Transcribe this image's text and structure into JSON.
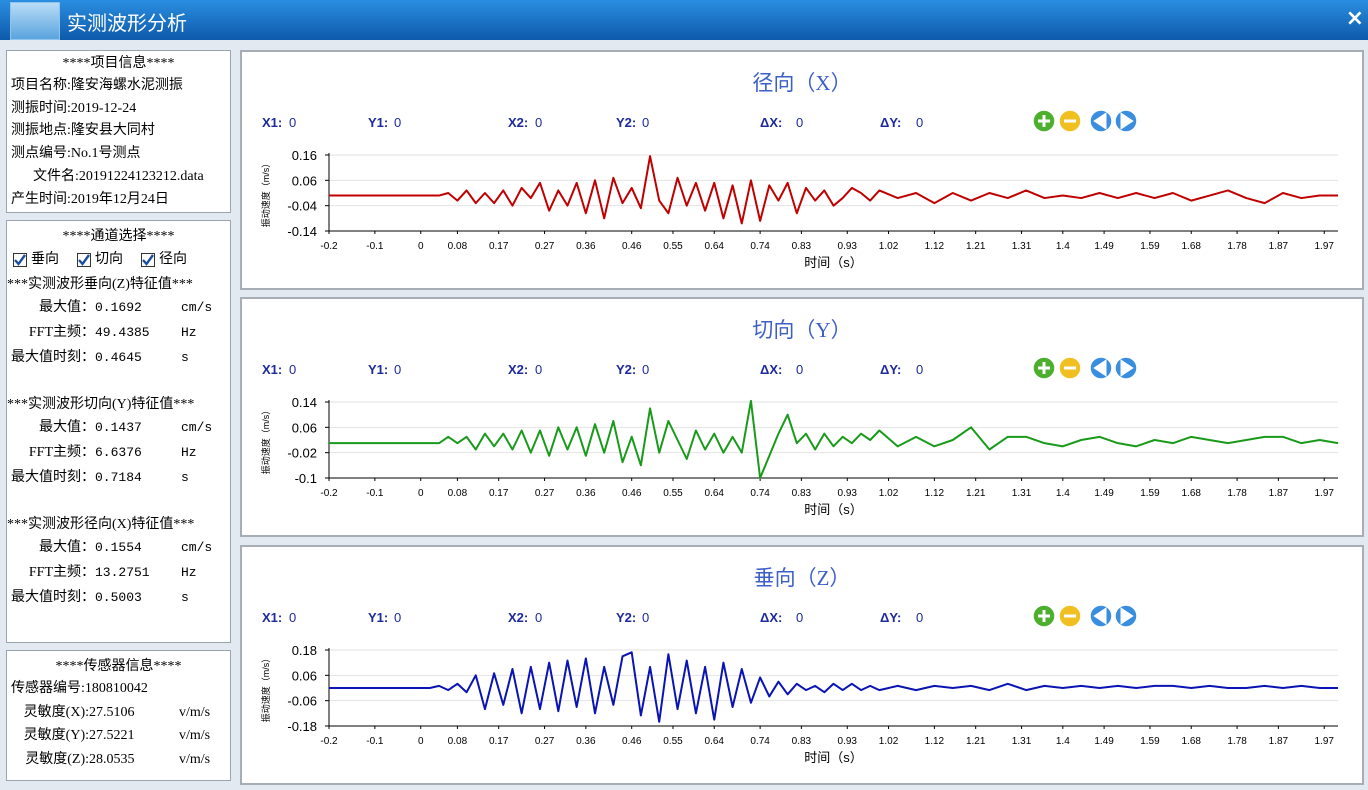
{
  "window": {
    "title": "实测波形分析",
    "close": "×"
  },
  "project": {
    "heading": "****项目信息****",
    "lines": [
      "项目名称:隆安海螺水泥测振",
      "测振时间:2019-12-24",
      "测振地点:隆安县大同村",
      "测点编号:No.1号测点",
      "文件名:20191224123212.data",
      "产生时间:2019年12月24日"
    ]
  },
  "channels": {
    "heading": "****通道选择****",
    "options": [
      {
        "label": "垂向",
        "checked": true
      },
      {
        "label": "切向",
        "checked": true
      },
      {
        "label": "径向",
        "checked": true
      }
    ]
  },
  "features": [
    {
      "heading": "***实测波形垂向(Z)特征值***",
      "rows": [
        {
          "label": "最大值：",
          "value": 0.1692,
          "unit": "cm/s"
        },
        {
          "label": "FFT主频：",
          "value": 49.4385,
          "unit": "Hz"
        },
        {
          "label": "最大值时刻：",
          "value": 0.4645,
          "unit": "s"
        }
      ]
    },
    {
      "heading": "***实测波形切向(Y)特征值***",
      "rows": [
        {
          "label": "最大值：",
          "value": 0.1437,
          "unit": "cm/s"
        },
        {
          "label": "FFT主频：",
          "value": 6.6376,
          "unit": "Hz"
        },
        {
          "label": "最大值时刻：",
          "value": 0.7184,
          "unit": "s"
        }
      ]
    },
    {
      "heading": "***实测波形径向(X)特征值***",
      "rows": [
        {
          "label": "最大值：",
          "value": 0.1554,
          "unit": "cm/s"
        },
        {
          "label": "FFT主频：",
          "value": 13.2751,
          "unit": "Hz"
        },
        {
          "label": "最大值时刻：",
          "value": 0.5003,
          "unit": "s"
        }
      ]
    }
  ],
  "sensor": {
    "heading": "****传感器信息****",
    "id_line": "传感器编号:180810042",
    "rows": [
      {
        "label": "灵敏度(X):",
        "value": 27.5106,
        "unit": "v/m/s"
      },
      {
        "label": "灵敏度(Y):",
        "value": 27.5221,
        "unit": "v/m/s"
      },
      {
        "label": "灵敏度(Z):",
        "value": 28.0535,
        "unit": "v/m/s"
      }
    ]
  },
  "chart_data": [
    {
      "type": "line",
      "title": "径向（X）",
      "color": "#c00000",
      "grid": true,
      "readouts": [
        {
          "label": "X1:",
          "value": 0
        },
        {
          "label": "Y1:",
          "value": 0
        },
        {
          "label": "X2:",
          "value": 0
        },
        {
          "label": "Y2:",
          "value": 0
        },
        {
          "label": "ΔX:",
          "value": 0
        },
        {
          "label": "ΔY:",
          "value": 0
        }
      ],
      "xlabel": "时间（s）",
      "ylabel": "振动速度（m/s）",
      "xlim": [
        -0.2,
        2.0
      ],
      "xticks": [
        -0.2,
        -0.1,
        0,
        0.08,
        0.17,
        0.27,
        0.36,
        0.46,
        0.55,
        0.64,
        0.74,
        0.83,
        0.93,
        1.02,
        1.12,
        1.21,
        1.31,
        1.4,
        1.49,
        1.59,
        1.68,
        1.78,
        1.87,
        1.97
      ],
      "ylim": [
        -0.14,
        0.16
      ],
      "yticks": [
        0.16,
        0.06,
        -0.04,
        -0.14
      ],
      "x": [
        -0.2,
        0.02,
        0.04,
        0.06,
        0.08,
        0.1,
        0.12,
        0.14,
        0.16,
        0.18,
        0.2,
        0.22,
        0.24,
        0.26,
        0.28,
        0.3,
        0.32,
        0.34,
        0.36,
        0.38,
        0.4,
        0.42,
        0.44,
        0.46,
        0.48,
        0.5,
        0.52,
        0.54,
        0.56,
        0.58,
        0.6,
        0.62,
        0.64,
        0.66,
        0.68,
        0.7,
        0.72,
        0.74,
        0.76,
        0.78,
        0.8,
        0.82,
        0.84,
        0.86,
        0.88,
        0.9,
        0.92,
        0.94,
        0.96,
        0.98,
        1.0,
        1.04,
        1.08,
        1.12,
        1.16,
        1.2,
        1.24,
        1.28,
        1.32,
        1.36,
        1.4,
        1.44,
        1.48,
        1.52,
        1.56,
        1.6,
        1.64,
        1.68,
        1.72,
        1.76,
        1.8,
        1.84,
        1.88,
        1.92,
        1.96,
        2.0
      ],
      "values": [
        0,
        0,
        0,
        0.01,
        -0.02,
        0.02,
        -0.03,
        0.01,
        -0.03,
        0.02,
        -0.04,
        0.03,
        -0.01,
        0.05,
        -0.06,
        0.02,
        -0.04,
        0.05,
        -0.07,
        0.06,
        -0.09,
        0.07,
        -0.03,
        0.03,
        -0.05,
        0.1554,
        -0.02,
        -0.07,
        0.07,
        -0.04,
        0.05,
        -0.06,
        0.05,
        -0.09,
        0.04,
        -0.11,
        0.06,
        -0.1,
        0.04,
        -0.02,
        0.05,
        -0.07,
        0.03,
        -0.02,
        0.02,
        -0.04,
        -0.01,
        0.03,
        0.01,
        -0.02,
        0.02,
        -0.01,
        0.01,
        -0.03,
        0.01,
        -0.02,
        0.01,
        -0.01,
        0.02,
        -0.01,
        0,
        -0.01,
        0.01,
        -0.01,
        0.01,
        -0.01,
        0.01,
        -0.02,
        0,
        0.02,
        -0.01,
        -0.03,
        0.01,
        -0.01,
        0,
        0
      ]
    },
    {
      "type": "line",
      "title": "切向（Y）",
      "color": "#1a9a1a",
      "grid": true,
      "readouts": [
        {
          "label": "X1:",
          "value": 0
        },
        {
          "label": "Y1:",
          "value": 0
        },
        {
          "label": "X2:",
          "value": 0
        },
        {
          "label": "Y2:",
          "value": 0
        },
        {
          "label": "ΔX:",
          "value": 0
        },
        {
          "label": "ΔY:",
          "value": 0
        }
      ],
      "xlabel": "时间（s）",
      "ylabel": "振动速度（m/s）",
      "xlim": [
        -0.2,
        2.0
      ],
      "xticks": [
        -0.2,
        -0.1,
        0,
        0.08,
        0.17,
        0.27,
        0.36,
        0.46,
        0.55,
        0.64,
        0.74,
        0.83,
        0.93,
        1.02,
        1.12,
        1.21,
        1.31,
        1.4,
        1.49,
        1.59,
        1.68,
        1.78,
        1.87,
        1.97
      ],
      "ylim": [
        -0.1,
        0.14
      ],
      "yticks": [
        0.14,
        0.06,
        -0.02,
        -0.1
      ],
      "x": [
        -0.2,
        0.02,
        0.04,
        0.06,
        0.08,
        0.1,
        0.12,
        0.14,
        0.16,
        0.18,
        0.2,
        0.22,
        0.24,
        0.26,
        0.28,
        0.3,
        0.32,
        0.34,
        0.36,
        0.38,
        0.4,
        0.42,
        0.44,
        0.46,
        0.48,
        0.5,
        0.52,
        0.54,
        0.56,
        0.58,
        0.6,
        0.62,
        0.64,
        0.66,
        0.68,
        0.7,
        0.72,
        0.74,
        0.76,
        0.78,
        0.8,
        0.82,
        0.84,
        0.86,
        0.88,
        0.9,
        0.92,
        0.94,
        0.96,
        0.98,
        1.0,
        1.04,
        1.08,
        1.12,
        1.16,
        1.2,
        1.24,
        1.28,
        1.32,
        1.36,
        1.4,
        1.44,
        1.48,
        1.52,
        1.56,
        1.6,
        1.64,
        1.68,
        1.72,
        1.76,
        1.8,
        1.84,
        1.88,
        1.92,
        1.96,
        2.0
      ],
      "values": [
        0.01,
        0.01,
        0.01,
        0.03,
        0.01,
        0.03,
        -0.01,
        0.04,
        0,
        0.04,
        -0.01,
        0.05,
        -0.02,
        0.05,
        -0.03,
        0.06,
        -0.01,
        0.06,
        -0.03,
        0.07,
        -0.02,
        0.08,
        -0.05,
        0.03,
        -0.06,
        0.12,
        -0.02,
        0.08,
        0.02,
        -0.04,
        0.05,
        -0.01,
        0.04,
        -0.02,
        0.03,
        -0.02,
        0.1437,
        -0.1,
        -0.03,
        0.04,
        0.1,
        0.01,
        0.04,
        -0.01,
        0.04,
        0,
        0.03,
        0.01,
        0.04,
        0.02,
        0.05,
        0,
        0.03,
        0,
        0.02,
        0.06,
        -0.01,
        0.03,
        0.03,
        0.01,
        0,
        0.02,
        0.03,
        0.01,
        0,
        0.02,
        0.01,
        0.03,
        0.02,
        0.01,
        0.02,
        0.03,
        0.03,
        0.01,
        0.02,
        0.01
      ]
    },
    {
      "type": "line",
      "title": "垂向（Z）",
      "color": "#0a14b4",
      "grid": true,
      "readouts": [
        {
          "label": "X1:",
          "value": 0
        },
        {
          "label": "Y1:",
          "value": 0
        },
        {
          "label": "X2:",
          "value": 0
        },
        {
          "label": "Y2:",
          "value": 0
        },
        {
          "label": "ΔX:",
          "value": 0
        },
        {
          "label": "ΔY:",
          "value": 0
        }
      ],
      "xlabel": "时间（s）",
      "ylabel": "振动速度（m/s）",
      "xlim": [
        -0.2,
        2.0
      ],
      "xticks": [
        -0.2,
        -0.1,
        0,
        0.08,
        0.17,
        0.27,
        0.36,
        0.46,
        0.55,
        0.64,
        0.74,
        0.83,
        0.93,
        1.02,
        1.12,
        1.21,
        1.31,
        1.4,
        1.49,
        1.59,
        1.68,
        1.78,
        1.87,
        1.97
      ],
      "ylim": [
        -0.18,
        0.18
      ],
      "yticks": [
        0.18,
        0.06,
        -0.06,
        -0.18
      ],
      "x": [
        -0.2,
        0.02,
        0.04,
        0.06,
        0.08,
        0.1,
        0.12,
        0.14,
        0.16,
        0.18,
        0.2,
        0.22,
        0.24,
        0.26,
        0.28,
        0.3,
        0.32,
        0.34,
        0.36,
        0.38,
        0.4,
        0.42,
        0.44,
        0.46,
        0.48,
        0.5,
        0.52,
        0.54,
        0.56,
        0.58,
        0.6,
        0.62,
        0.64,
        0.66,
        0.68,
        0.7,
        0.72,
        0.74,
        0.76,
        0.78,
        0.8,
        0.82,
        0.84,
        0.86,
        0.88,
        0.9,
        0.92,
        0.94,
        0.96,
        0.98,
        1.0,
        1.04,
        1.08,
        1.12,
        1.16,
        1.2,
        1.24,
        1.28,
        1.32,
        1.36,
        1.4,
        1.44,
        1.48,
        1.52,
        1.56,
        1.6,
        1.64,
        1.68,
        1.72,
        1.76,
        1.8,
        1.84,
        1.88,
        1.92,
        1.96,
        2.0
      ],
      "values": [
        0,
        0,
        0.01,
        -0.01,
        0.02,
        -0.02,
        0.06,
        -0.1,
        0.07,
        -0.08,
        0.09,
        -0.12,
        0.1,
        -0.1,
        0.12,
        -0.11,
        0.13,
        -0.09,
        0.14,
        -0.12,
        0.1,
        -0.08,
        0.15,
        0.1692,
        -0.13,
        0.1,
        -0.16,
        0.16,
        -0.1,
        0.13,
        -0.12,
        0.1,
        -0.15,
        0.12,
        -0.09,
        0.09,
        -0.07,
        0.05,
        -0.04,
        0.03,
        -0.03,
        0.02,
        -0.01,
        0.01,
        -0.02,
        0.02,
        -0.01,
        0.02,
        -0.01,
        0.01,
        -0.01,
        0.01,
        -0.01,
        0.01,
        0,
        0.01,
        -0.01,
        0.02,
        -0.01,
        0.01,
        0,
        0.01,
        0,
        0.01,
        0,
        0.01,
        0.01,
        0,
        0.01,
        0,
        0,
        0.01,
        0,
        0.01,
        0,
        0
      ]
    }
  ]
}
